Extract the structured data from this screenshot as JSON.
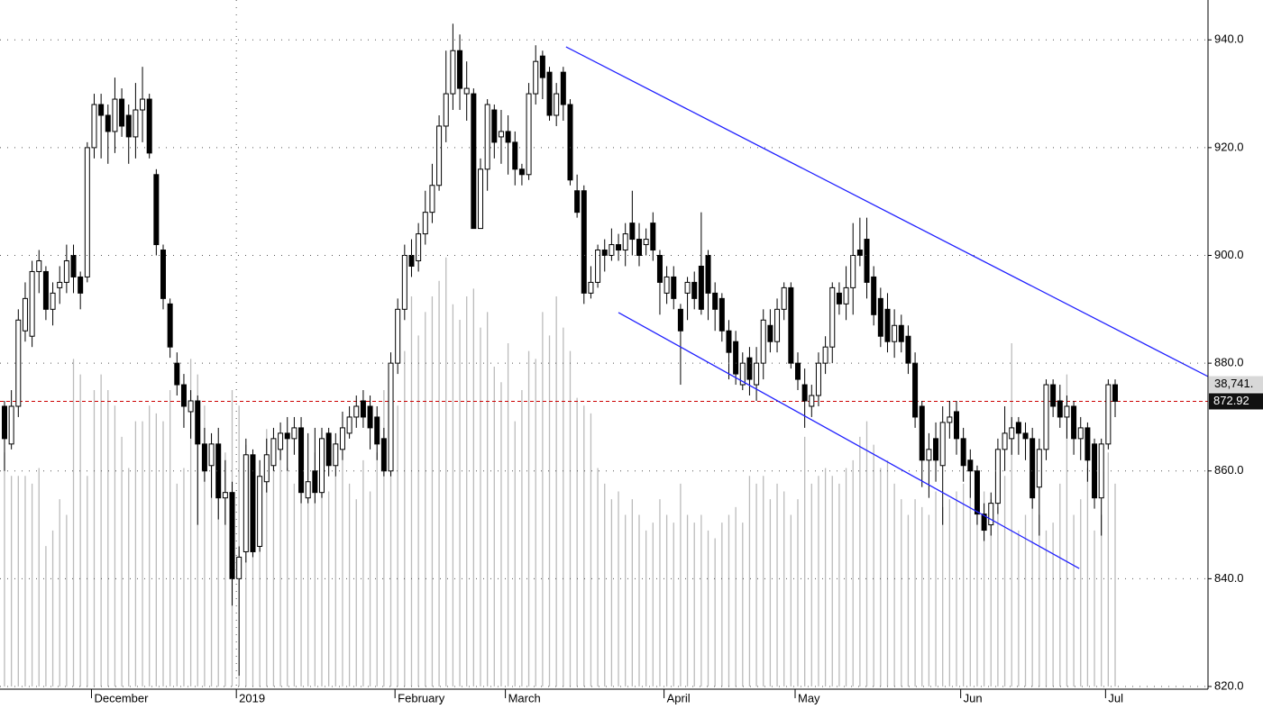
{
  "chart_data": {
    "type": "candlestick",
    "categories": [
      null,
      null,
      null,
      null,
      null,
      null,
      null,
      null,
      null,
      null,
      null,
      null,
      null,
      "December",
      null,
      null,
      null,
      null,
      null,
      null,
      null,
      null,
      null,
      null,
      null,
      null,
      null,
      null,
      null,
      null,
      null,
      null,
      null,
      null,
      "2019",
      null,
      null,
      null,
      null,
      null,
      null,
      null,
      null,
      null,
      null,
      null,
      null,
      null,
      null,
      null,
      null,
      null,
      null,
      null,
      null,
      null,
      null,
      "February",
      null,
      null,
      null,
      null,
      null,
      null,
      null,
      null,
      null,
      null,
      null,
      null,
      null,
      null,
      null,
      "March",
      null,
      null,
      null,
      null,
      null,
      null,
      null,
      null,
      null,
      null,
      null,
      null,
      null,
      null,
      null,
      null,
      null,
      null,
      null,
      null,
      null,
      null,
      "April",
      null,
      null,
      null,
      null,
      null,
      null,
      null,
      null,
      null,
      null,
      null,
      null,
      null,
      null,
      null,
      null,
      null,
      null,
      "May",
      null,
      null,
      null,
      null,
      null,
      null,
      null,
      null,
      null,
      null,
      null,
      null,
      null,
      null,
      null,
      null,
      null,
      null,
      null,
      null,
      null,
      null,
      null,
      "Jun",
      null,
      null,
      null,
      null,
      null,
      null,
      null,
      null,
      null,
      null,
      null,
      null,
      null,
      null,
      null,
      null,
      null,
      null,
      null,
      null,
      "Jul",
      null
    ],
    "open": [
      872,
      865,
      872,
      886,
      885,
      897,
      897,
      890,
      894,
      895,
      900,
      896,
      896,
      920,
      928,
      926,
      923,
      929,
      926,
      922,
      927,
      929,
      915,
      901,
      891,
      880,
      876,
      871,
      873,
      865,
      861,
      865,
      855,
      856,
      840,
      845,
      863,
      846,
      858,
      861,
      864,
      867,
      866,
      868,
      855,
      860,
      856,
      867,
      861,
      864,
      867,
      870,
      873,
      872,
      870,
      866,
      860,
      880,
      890,
      900,
      899,
      904,
      908,
      913,
      924,
      930,
      938,
      930,
      930,
      905,
      916,
      927,
      922,
      923,
      921,
      916,
      915,
      930,
      937,
      934,
      926,
      934,
      928,
      912,
      912,
      893,
      895,
      901,
      900,
      902,
      901,
      906,
      903,
      902,
      906,
      900,
      893,
      896,
      890,
      893,
      895,
      898,
      900,
      893,
      892,
      886,
      884,
      876,
      881,
      876,
      880,
      887,
      884,
      890,
      894,
      880,
      876,
      872,
      874,
      880,
      883,
      893,
      891,
      894,
      901,
      903,
      896,
      892,
      890,
      884,
      887,
      885,
      880,
      872,
      862,
      866,
      861,
      869,
      871,
      866,
      862,
      860,
      852,
      850,
      854,
      864,
      866,
      869,
      867,
      866,
      857,
      864,
      876,
      873,
      870,
      872,
      866,
      868,
      865,
      855,
      865,
      876
    ],
    "high": [
      873,
      875,
      890,
      895,
      899,
      901,
      898,
      895,
      898,
      902,
      902,
      897,
      921,
      930,
      930,
      928,
      933,
      931,
      928,
      932,
      935,
      930,
      916,
      902,
      892,
      882,
      878,
      875,
      874,
      868,
      867,
      868,
      862,
      858,
      846,
      866,
      864,
      862,
      866,
      868,
      869,
      870,
      870,
      870,
      867,
      868,
      868,
      868,
      867,
      871,
      872,
      874,
      875,
      874,
      872,
      868,
      882,
      892,
      902,
      903,
      906,
      912,
      917,
      926,
      938,
      943,
      941,
      936,
      931,
      918,
      929,
      928,
      927,
      926,
      923,
      917,
      932,
      939,
      938,
      935,
      932,
      935,
      929,
      915,
      913,
      898,
      902,
      903,
      905,
      904,
      906,
      912,
      906,
      905,
      908,
      901,
      898,
      898,
      891,
      896,
      897,
      908,
      901,
      895,
      893,
      888,
      886,
      882,
      883,
      883,
      890,
      890,
      892,
      895,
      895,
      882,
      879,
      876,
      882,
      885,
      895,
      895,
      898,
      906,
      907,
      907,
      898,
      894,
      893,
      890,
      889,
      887,
      882,
      873,
      867,
      869,
      872,
      873,
      873,
      868,
      864,
      861,
      854,
      856,
      866,
      872,
      870,
      870,
      869,
      868,
      866,
      877,
      877,
      876,
      874,
      873,
      870,
      869,
      866,
      866,
      877,
      877
    ],
    "low": [
      860,
      864,
      870,
      884,
      883,
      893,
      888,
      887,
      891,
      893,
      893,
      890,
      895,
      918,
      918,
      917,
      919,
      922,
      917,
      918,
      921,
      918,
      900,
      890,
      881,
      874,
      868,
      866,
      850,
      858,
      855,
      851,
      850,
      835,
      822,
      843,
      844,
      845,
      856,
      860,
      862,
      860,
      863,
      854,
      854,
      854,
      855,
      859,
      859,
      862,
      866,
      868,
      868,
      864,
      862,
      859,
      859,
      878,
      888,
      896,
      897,
      902,
      906,
      912,
      921,
      927,
      927,
      925,
      905,
      905,
      912,
      918,
      917,
      915,
      913,
      913,
      914,
      928,
      929,
      925,
      924,
      925,
      913,
      907,
      891,
      892,
      894,
      897,
      899,
      899,
      898,
      900,
      898,
      900,
      899,
      889,
      891,
      890,
      876,
      888,
      890,
      889,
      888,
      886,
      884,
      877,
      876,
      875,
      874,
      873,
      877,
      882,
      882,
      888,
      879,
      875,
      868,
      870,
      872,
      878,
      880,
      889,
      888,
      889,
      898,
      892,
      887,
      883,
      882,
      881,
      882,
      878,
      868,
      857,
      855,
      858,
      850,
      866,
      863,
      858,
      855,
      850,
      847,
      848,
      852,
      860,
      863,
      863,
      862,
      853,
      848,
      862,
      870,
      868,
      866,
      863,
      862,
      858,
      853,
      848,
      864,
      870
    ],
    "close": [
      866,
      872,
      888,
      892,
      897,
      899,
      890,
      893,
      895,
      899,
      896,
      893,
      920,
      928,
      926,
      923,
      929,
      924,
      922,
      927,
      929,
      919,
      902,
      892,
      883,
      876,
      872,
      873,
      865,
      860,
      865,
      855,
      856,
      840,
      844,
      863,
      845,
      859,
      863,
      866,
      867,
      866,
      868,
      856,
      858,
      856,
      866,
      861,
      865,
      868,
      870,
      872,
      870,
      868,
      865,
      860,
      880,
      890,
      900,
      898,
      904,
      908,
      913,
      924,
      930,
      938,
      931,
      931,
      905,
      916,
      928,
      921,
      923,
      921,
      916,
      915,
      930,
      936,
      933,
      926,
      930,
      928,
      914,
      908,
      893,
      895,
      901,
      900,
      902,
      901,
      904,
      903,
      900,
      903,
      901,
      895,
      896,
      892,
      886,
      895,
      892,
      890,
      893,
      890,
      886,
      882,
      878,
      880,
      877,
      880,
      888,
      884,
      890,
      894,
      880,
      877,
      873,
      874,
      880,
      883,
      894,
      891,
      894,
      900,
      900,
      895,
      889,
      885,
      884,
      887,
      884,
      880,
      870,
      862,
      864,
      862,
      869,
      870,
      866,
      861,
      860,
      852,
      849,
      854,
      864,
      867,
      868,
      867,
      866,
      855,
      864,
      876,
      872,
      870,
      872,
      866,
      868,
      862,
      855,
      865,
      876,
      872.92
    ],
    "volume": [
      30000,
      27000,
      27000,
      27000,
      26000,
      28000,
      18000,
      20000,
      24000,
      22000,
      42000,
      40000,
      27000,
      38000,
      40000,
      38000,
      36000,
      32000,
      28000,
      34000,
      34000,
      36000,
      35000,
      34000,
      38000,
      26000,
      28000,
      42000,
      40000,
      36000,
      31000,
      26000,
      30000,
      38000,
      36000,
      31000,
      26000,
      27000,
      33000,
      30000,
      32000,
      28000,
      26000,
      27000,
      25000,
      30000,
      28000,
      25000,
      27000,
      29000,
      26000,
      24000,
      29000,
      25000,
      30000,
      38000,
      33000,
      36000,
      43000,
      50000,
      45000,
      48000,
      50000,
      52000,
      55000,
      49000,
      47000,
      50000,
      51000,
      46000,
      48000,
      41000,
      39000,
      44000,
      34000,
      38000,
      43000,
      42000,
      48000,
      45000,
      50000,
      46000,
      43000,
      37000,
      36000,
      35000,
      28000,
      26000,
      24000,
      25000,
      22000,
      24000,
      22000,
      20000,
      21000,
      24000,
      22000,
      21000,
      26000,
      22000,
      21000,
      22000,
      20000,
      19000,
      21000,
      22000,
      23000,
      21000,
      27000,
      26000,
      27000,
      24000,
      26000,
      25000,
      22000,
      24000,
      32000,
      26000,
      27000,
      28000,
      27000,
      26000,
      28000,
      29000,
      32000,
      34000,
      31000,
      28000,
      29000,
      26000,
      24000,
      22000,
      24000,
      23000,
      22000,
      25000,
      23000,
      24000,
      25000,
      26000,
      27000,
      26000,
      25000,
      24000,
      23000,
      27000,
      44000,
      20000,
      22000,
      26000,
      22000,
      20000,
      21000,
      26000,
      40000,
      22000,
      24000,
      28000,
      20000,
      22000,
      30000,
      26000
    ],
    "ylim": [
      820,
      947.4
    ],
    "yticks": [
      {
        "value": 820,
        "label": "820.0"
      },
      {
        "value": 840,
        "label": "840.0"
      },
      {
        "value": 860,
        "label": "860.0"
      },
      {
        "value": 880,
        "label": "880.0"
      },
      {
        "value": 900,
        "label": "900.0"
      },
      {
        "value": 920,
        "label": "920.0"
      },
      {
        "value": 940,
        "label": "940.0"
      }
    ],
    "y2lim": [
      0,
      88000
    ],
    "y2ticks": [
      {
        "value": 38741,
        "label": "38,741."
      }
    ],
    "grid": true,
    "up_color": "#ffffff",
    "down_color": "#000000",
    "volume_color": "#bbbbbb",
    "last_line_color": "#cc0000",
    "trendlines": [
      {
        "color": "#2020ff",
        "x": [
          81.4,
          174.5
        ],
        "y": [
          938.7,
          877.5
        ]
      },
      {
        "color": "#2020ff",
        "x": [
          89,
          155.8
        ],
        "y": [
          889.4,
          841.9
        ]
      }
    ]
  }
}
